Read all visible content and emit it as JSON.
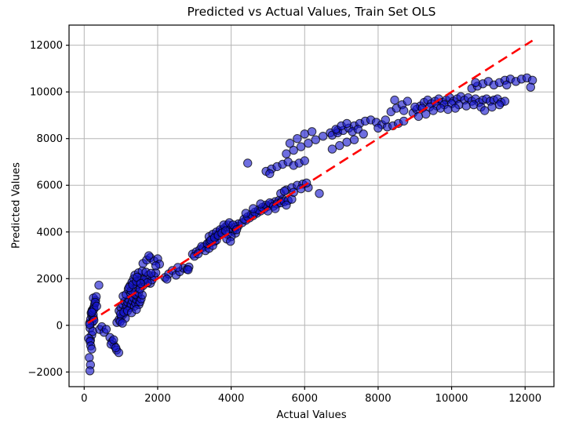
{
  "chart_data": {
    "type": "scatter",
    "title": "Predicted vs Actual Values, Train Set OLS",
    "xlabel": "Actual Values",
    "ylabel": "Predicted Values",
    "xlim": [
      -412,
      12785
    ],
    "ylim": [
      -2628,
      12863
    ],
    "xticks": [
      0,
      2000,
      4000,
      6000,
      8000,
      10000,
      12000
    ],
    "xtick_labels": [
      "0",
      "2000",
      "4000",
      "6000",
      "8000",
      "10000",
      "12000"
    ],
    "yticks": [
      -2000,
      0,
      2000,
      4000,
      6000,
      8000,
      10000,
      12000
    ],
    "ytick_labels": [
      "−2000",
      "0",
      "2000",
      "4000",
      "6000",
      "8000",
      "10000",
      "12000"
    ],
    "grid": true,
    "grid_color": "#b5b5b5",
    "spine_color": "#000000",
    "point_color": "#1515cd",
    "point_opacity": 0.62,
    "point_edge_color": "#000000",
    "point_edge_opacity": 0.75,
    "point_radius": 5.2,
    "ref_line": {
      "name": "identity",
      "x0": 100,
      "y0": 100,
      "x1": 12200,
      "y1": 12200,
      "color": "#ff0000",
      "width": 2.6,
      "dash": "13 7"
    },
    "points": [
      [
        150,
        100
      ],
      [
        175,
        260
      ],
      [
        205,
        420
      ],
      [
        225,
        140
      ],
      [
        255,
        310
      ],
      [
        160,
        -120
      ],
      [
        205,
        -420
      ],
      [
        170,
        -640
      ],
      [
        235,
        -260
      ],
      [
        190,
        530
      ],
      [
        215,
        640
      ],
      [
        245,
        460
      ],
      [
        265,
        210
      ],
      [
        150,
        40
      ],
      [
        230,
        640
      ],
      [
        260,
        760
      ],
      [
        285,
        900
      ],
      [
        310,
        1060
      ],
      [
        250,
        1170
      ],
      [
        330,
        1230
      ],
      [
        270,
        700
      ],
      [
        300,
        980
      ],
      [
        340,
        820
      ],
      [
        210,
        560
      ],
      [
        120,
        -560
      ],
      [
        160,
        -700
      ],
      [
        180,
        -880
      ],
      [
        205,
        -1020
      ],
      [
        140,
        -1380
      ],
      [
        170,
        -1690
      ],
      [
        155,
        -1950
      ],
      [
        400,
        1720
      ],
      [
        420,
        -180
      ],
      [
        480,
        -60
      ],
      [
        540,
        -300
      ],
      [
        600,
        -170
      ],
      [
        700,
        -520
      ],
      [
        760,
        -700
      ],
      [
        820,
        -880
      ],
      [
        880,
        -1060
      ],
      [
        940,
        -1170
      ],
      [
        730,
        -810
      ],
      [
        800,
        -620
      ],
      [
        860,
        -960
      ],
      [
        890,
        120
      ],
      [
        950,
        250
      ],
      [
        1010,
        380
      ],
      [
        1070,
        480
      ],
      [
        1120,
        300
      ],
      [
        980,
        160
      ],
      [
        1040,
        90
      ],
      [
        950,
        620
      ],
      [
        1000,
        760
      ],
      [
        1050,
        880
      ],
      [
        1100,
        1020
      ],
      [
        1130,
        700
      ],
      [
        1160,
        850
      ],
      [
        1190,
        980
      ],
      [
        1220,
        1100
      ],
      [
        1250,
        760
      ],
      [
        1280,
        900
      ],
      [
        1310,
        1050
      ],
      [
        1340,
        1180
      ],
      [
        1370,
        820
      ],
      [
        1400,
        950
      ],
      [
        1430,
        1090
      ],
      [
        1460,
        1230
      ],
      [
        1490,
        890
      ],
      [
        1520,
        1010
      ],
      [
        1550,
        1140
      ],
      [
        1060,
        1250
      ],
      [
        1140,
        1320
      ],
      [
        1260,
        1400
      ],
      [
        1390,
        1330
      ],
      [
        990,
        480
      ],
      [
        1080,
        560
      ],
      [
        1180,
        620
      ],
      [
        1290,
        540
      ],
      [
        1420,
        680
      ],
      [
        1480,
        1400
      ],
      [
        1580,
        1300
      ],
      [
        1200,
        1550
      ],
      [
        1250,
        1700
      ],
      [
        1300,
        1850
      ],
      [
        1350,
        2000
      ],
      [
        1400,
        1600
      ],
      [
        1450,
        1750
      ],
      [
        1500,
        1900
      ],
      [
        1550,
        2050
      ],
      [
        1600,
        1700
      ],
      [
        1650,
        1850
      ],
      [
        1700,
        2000
      ],
      [
        1750,
        2150
      ],
      [
        1800,
        1800
      ],
      [
        1850,
        1950
      ],
      [
        1900,
        2100
      ],
      [
        1950,
        2250
      ],
      [
        1280,
        1480
      ],
      [
        1380,
        2150
      ],
      [
        1480,
        2250
      ],
      [
        1580,
        2330
      ],
      [
        1680,
        2280
      ],
      [
        1220,
        1620
      ],
      [
        1320,
        1740
      ],
      [
        1420,
        1880
      ],
      [
        1520,
        1560
      ],
      [
        1620,
        1950
      ],
      [
        1720,
        1820
      ],
      [
        1820,
        2230
      ],
      [
        1440,
        2060
      ],
      [
        1540,
        1790
      ],
      [
        1600,
        2650
      ],
      [
        1700,
        2800
      ],
      [
        1800,
        2900
      ],
      [
        1900,
        2760
      ],
      [
        2000,
        2850
      ],
      [
        1760,
        2980
      ],
      [
        2050,
        2620
      ],
      [
        1950,
        2550
      ],
      [
        2200,
        2050
      ],
      [
        2300,
        2200
      ],
      [
        2400,
        2350
      ],
      [
        2500,
        2150
      ],
      [
        2600,
        2300
      ],
      [
        2700,
        2450
      ],
      [
        2800,
        2400
      ],
      [
        2850,
        2500
      ],
      [
        2250,
        1980
      ],
      [
        2550,
        2480
      ],
      [
        2830,
        2380
      ],
      [
        2950,
        3050
      ],
      [
        3050,
        3150
      ],
      [
        3150,
        3250
      ],
      [
        3250,
        3350
      ],
      [
        3350,
        3450
      ],
      [
        3450,
        3550
      ],
      [
        3550,
        3600
      ],
      [
        3000,
        2960
      ],
      [
        3100,
        3060
      ],
      [
        3200,
        3380
      ],
      [
        3300,
        3200
      ],
      [
        3400,
        3300
      ],
      [
        3500,
        3420
      ],
      [
        3600,
        3650
      ],
      [
        3350,
        3500
      ],
      [
        3420,
        3600
      ],
      [
        3490,
        3700
      ],
      [
        3560,
        3800
      ],
      [
        3630,
        3900
      ],
      [
        3700,
        4000
      ],
      [
        3770,
        4100
      ],
      [
        3840,
        4200
      ],
      [
        3910,
        4300
      ],
      [
        3980,
        4150
      ],
      [
        4050,
        4050
      ],
      [
        4120,
        3950
      ],
      [
        4190,
        4250
      ],
      [
        3400,
        3800
      ],
      [
        3500,
        3900
      ],
      [
        3600,
        4000
      ],
      [
        3700,
        4100
      ],
      [
        3800,
        4300
      ],
      [
        3900,
        3900
      ],
      [
        4000,
        3800
      ],
      [
        4100,
        4200
      ],
      [
        4200,
        4350
      ],
      [
        3450,
        3650
      ],
      [
        3550,
        3750
      ],
      [
        3650,
        3850
      ],
      [
        3750,
        3950
      ],
      [
        3850,
        4050
      ],
      [
        3950,
        4400
      ],
      [
        4050,
        4300
      ],
      [
        3880,
        3700
      ],
      [
        3980,
        3600
      ],
      [
        4150,
        4100
      ],
      [
        4300,
        4400
      ],
      [
        4400,
        4500
      ],
      [
        4500,
        4600
      ],
      [
        4600,
        4700
      ],
      [
        4700,
        4800
      ],
      [
        4800,
        4900
      ],
      [
        4900,
        5000
      ],
      [
        5000,
        5100
      ],
      [
        5100,
        5200
      ],
      [
        5200,
        5300
      ],
      [
        5300,
        5350
      ],
      [
        5400,
        5400
      ],
      [
        4350,
        4550
      ],
      [
        4450,
        4650
      ],
      [
        4550,
        4750
      ],
      [
        4650,
        4850
      ],
      [
        4750,
        4950
      ],
      [
        4850,
        5050
      ],
      [
        4950,
        5150
      ],
      [
        5050,
        5250
      ],
      [
        5150,
        5100
      ],
      [
        5250,
        5200
      ],
      [
        5350,
        5250
      ],
      [
        5450,
        5300
      ],
      [
        5550,
        5350
      ],
      [
        5650,
        5400
      ],
      [
        4400,
        4800
      ],
      [
        4600,
        5000
      ],
      [
        4800,
        5200
      ],
      [
        5000,
        4900
      ],
      [
        5200,
        5000
      ],
      [
        5500,
        5150
      ],
      [
        5350,
        5650
      ],
      [
        5500,
        5800
      ],
      [
        5650,
        5900
      ],
      [
        5800,
        6000
      ],
      [
        5950,
        6050
      ],
      [
        6100,
        5900
      ],
      [
        5450,
        5750
      ],
      [
        5700,
        5700
      ],
      [
        5900,
        5850
      ],
      [
        6050,
        6100
      ],
      [
        6400,
        5650
      ],
      [
        4450,
        6950
      ],
      [
        4950,
        6600
      ],
      [
        5100,
        6700
      ],
      [
        5250,
        6800
      ],
      [
        5400,
        6900
      ],
      [
        5550,
        7000
      ],
      [
        5700,
        6850
      ],
      [
        5850,
        6950
      ],
      [
        6000,
        7050
      ],
      [
        5050,
        6500
      ],
      [
        5500,
        7350
      ],
      [
        5700,
        7500
      ],
      [
        5900,
        7650
      ],
      [
        6100,
        7800
      ],
      [
        6300,
        7950
      ],
      [
        6500,
        8100
      ],
      [
        6700,
        8250
      ],
      [
        6900,
        8350
      ],
      [
        5600,
        7800
      ],
      [
        5800,
        8000
      ],
      [
        6000,
        8200
      ],
      [
        6200,
        8300
      ],
      [
        6750,
        7550
      ],
      [
        6950,
        7700
      ],
      [
        7150,
        7850
      ],
      [
        7350,
        7950
      ],
      [
        6750,
        8150
      ],
      [
        6900,
        8250
      ],
      [
        7050,
        8350
      ],
      [
        7200,
        8450
      ],
      [
        7350,
        8550
      ],
      [
        7500,
        8650
      ],
      [
        7650,
        8750
      ],
      [
        7800,
        8800
      ],
      [
        7950,
        8700
      ],
      [
        8100,
        8600
      ],
      [
        8250,
        8500
      ],
      [
        8400,
        8550
      ],
      [
        8550,
        8650
      ],
      [
        8700,
        8750
      ],
      [
        6850,
        8400
      ],
      [
        7000,
        8550
      ],
      [
        7150,
        8650
      ],
      [
        7300,
        8300
      ],
      [
        7450,
        8400
      ],
      [
        7600,
        8200
      ],
      [
        8000,
        8450
      ],
      [
        8200,
        8800
      ],
      [
        8350,
        9150
      ],
      [
        8500,
        9300
      ],
      [
        8650,
        9450
      ],
      [
        8800,
        9600
      ],
      [
        8450,
        9650
      ],
      [
        8700,
        9200
      ],
      [
        8950,
        9100
      ],
      [
        9050,
        9250
      ],
      [
        9150,
        9400
      ],
      [
        9250,
        9550
      ],
      [
        9350,
        9650
      ],
      [
        9450,
        9500
      ],
      [
        9550,
        9600
      ],
      [
        9650,
        9700
      ],
      [
        9750,
        9550
      ],
      [
        9850,
        9650
      ],
      [
        9950,
        9750
      ],
      [
        10050,
        9600
      ],
      [
        10150,
        9700
      ],
      [
        10250,
        9800
      ],
      [
        10350,
        9650
      ],
      [
        10450,
        9750
      ],
      [
        10550,
        9600
      ],
      [
        10650,
        9700
      ],
      [
        10750,
        9550
      ],
      [
        10850,
        9650
      ],
      [
        10950,
        9700
      ],
      [
        11050,
        9600
      ],
      [
        11150,
        9650
      ],
      [
        11250,
        9700
      ],
      [
        11350,
        9550
      ],
      [
        11450,
        9600
      ],
      [
        9000,
        9350
      ],
      [
        9200,
        9300
      ],
      [
        9400,
        9350
      ],
      [
        9600,
        9400
      ],
      [
        9800,
        9450
      ],
      [
        10000,
        9500
      ],
      [
        10200,
        9450
      ],
      [
        10400,
        9400
      ],
      [
        10600,
        9450
      ],
      [
        10800,
        9350
      ],
      [
        9700,
        9300
      ],
      [
        9900,
        9250
      ],
      [
        10100,
        9300
      ],
      [
        9500,
        9200
      ],
      [
        9300,
        9050
      ],
      [
        9100,
        8950
      ],
      [
        10900,
        9200
      ],
      [
        11100,
        9350
      ],
      [
        11300,
        9450
      ],
      [
        10550,
        10150
      ],
      [
        10700,
        10250
      ],
      [
        10850,
        10350
      ],
      [
        11000,
        10450
      ],
      [
        11150,
        10300
      ],
      [
        11300,
        10400
      ],
      [
        11450,
        10500
      ],
      [
        11600,
        10550
      ],
      [
        11750,
        10450
      ],
      [
        11900,
        10550
      ],
      [
        12050,
        10600
      ],
      [
        12200,
        10500
      ],
      [
        10650,
        10400
      ],
      [
        11500,
        10300
      ],
      [
        12150,
        10200
      ]
    ]
  }
}
